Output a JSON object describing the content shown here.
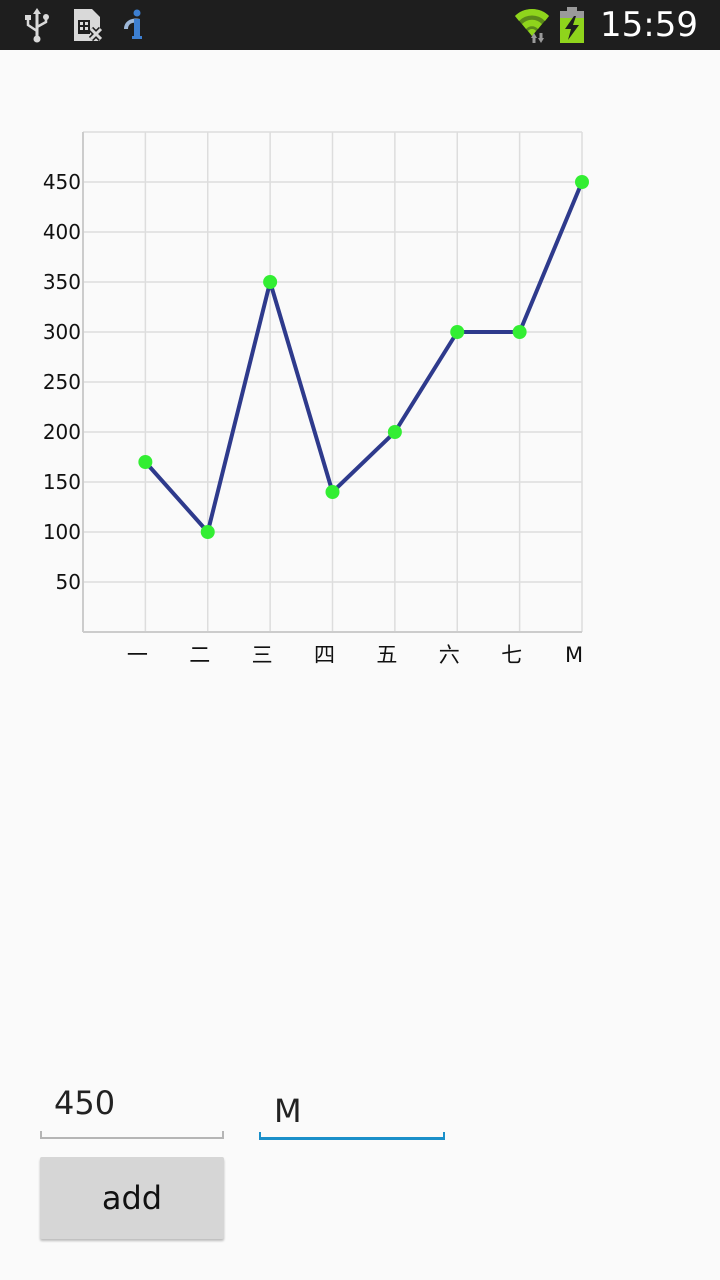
{
  "status_bar": {
    "time": "15:59",
    "left_icons": [
      "usb-icon",
      "sim-card-disabled-icon",
      "info-notification-icon"
    ],
    "right_icons": [
      "wifi-icon",
      "battery-charging-icon"
    ],
    "background": "#1e1e1e"
  },
  "chart_data": {
    "type": "line",
    "categories": [
      "一",
      "二",
      "三",
      "四",
      "五",
      "六",
      "七",
      "M"
    ],
    "series": [
      {
        "values": [
          170,
          100,
          350,
          140,
          200,
          300,
          300,
          450
        ]
      }
    ],
    "y_tick_labels": [
      "50",
      "100",
      "150",
      "200",
      "250",
      "300",
      "350",
      "400",
      "450"
    ],
    "ylim": [
      0,
      500
    ],
    "grid": true,
    "line_color": "#2e3a8c",
    "marker_color": "#33ee33",
    "grid_color": "#dddddd"
  },
  "form": {
    "value_input": "450",
    "label_input": "M",
    "add_label": "add",
    "focus_color": "#1a8fc9",
    "idle_underline_color": "#b5b5b5"
  }
}
